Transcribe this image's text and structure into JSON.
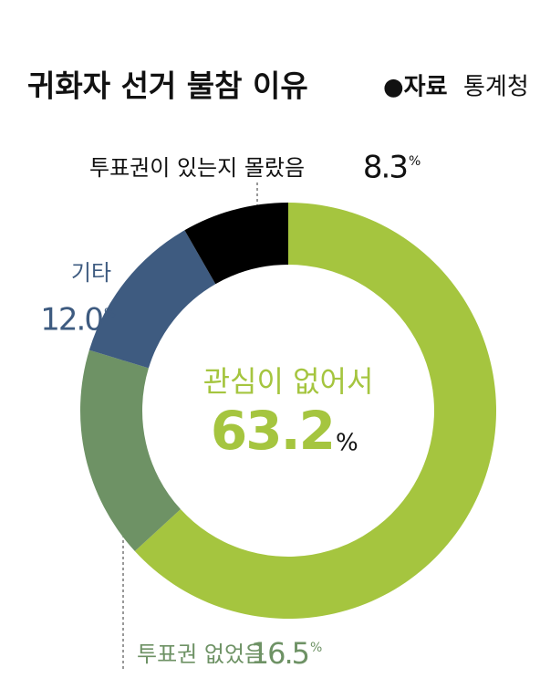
{
  "chart_data": {
    "type": "pie",
    "title": "귀화자 선거 불참 이유",
    "source_label": "●자료",
    "source": "통계청",
    "categories": [
      "관심이 없어서",
      "투표권 없었음",
      "기타",
      "투표권이 있는지 몰랐음"
    ],
    "values": [
      63.2,
      16.5,
      12.0,
      8.3
    ],
    "value_labels": [
      "63.2",
      "16.5",
      "12.0",
      "8.3"
    ],
    "unit": "%",
    "colors": [
      "#a5c53f",
      "#6e9265",
      "#3e5b80",
      "#000000"
    ]
  }
}
